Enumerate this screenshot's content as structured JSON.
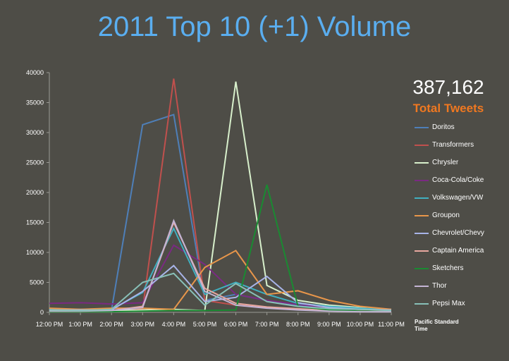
{
  "chart_data": {
    "type": "line",
    "title": "2011 Top 10 (+1) Volume",
    "x": [
      "12:00 PM",
      "1:00 PM",
      "2:00 PM",
      "3:00 PM",
      "4:00 PM",
      "5:00 PM",
      "6:00 PM",
      "7:00 PM",
      "8:00 PM",
      "9:00 PM",
      "10:00 PM",
      "11:00 PM"
    ],
    "yticks": [
      "0",
      "5000",
      "10000",
      "15000",
      "20000",
      "25000",
      "30000",
      "35000",
      "40000"
    ],
    "ylim": [
      0,
      40000
    ],
    "grid": false,
    "legend_position": "right",
    "series": [
      {
        "name": "Doritos",
        "color": "#4e7fb8",
        "values": [
          300,
          300,
          400,
          31300,
          33000,
          2000,
          3000,
          2000,
          1200,
          800,
          600,
          400
        ]
      },
      {
        "name": "Transformers",
        "color": "#c0504d",
        "values": [
          200,
          200,
          300,
          500,
          39000,
          2000,
          1200,
          800,
          500,
          300,
          200,
          150
        ]
      },
      {
        "name": "Chrysler",
        "color": "#d8f0cc",
        "values": [
          300,
          300,
          300,
          400,
          500,
          300,
          38500,
          4500,
          2000,
          1200,
          800,
          400
        ]
      },
      {
        "name": "Coca-Cola/Coke",
        "color": "#7a2a82",
        "values": [
          1500,
          1600,
          1400,
          1600,
          11200,
          8000,
          3000,
          2000,
          1300,
          800,
          600,
          400
        ]
      },
      {
        "name": "Volkswagen/VW",
        "color": "#40b0c0",
        "values": [
          500,
          500,
          500,
          3300,
          14000,
          3000,
          5000,
          3000,
          1500,
          1000,
          700,
          500
        ]
      },
      {
        "name": "Groupon",
        "color": "#e8964a",
        "values": [
          700,
          500,
          700,
          700,
          500,
          7500,
          10300,
          3000,
          3600,
          2000,
          1000,
          500
        ]
      },
      {
        "name": "Chevrolet/Chevy",
        "color": "#a8b4e8",
        "values": [
          400,
          400,
          400,
          3500,
          7800,
          1800,
          2500,
          6000,
          1600,
          800,
          500,
          400
        ]
      },
      {
        "name": "Captain America",
        "color": "#e8a8a0",
        "values": [
          200,
          200,
          300,
          1000,
          15000,
          4000,
          1500,
          900,
          600,
          300,
          200,
          100
        ]
      },
      {
        "name": "Sketchers",
        "color": "#1a8a32",
        "values": [
          100,
          100,
          100,
          200,
          300,
          300,
          400,
          21300,
          1000,
          400,
          200,
          100
        ]
      },
      {
        "name": "Thor",
        "color": "#c4b4d4",
        "values": [
          200,
          200,
          300,
          800,
          15300,
          3500,
          1200,
          700,
          400,
          200,
          100,
          100
        ]
      },
      {
        "name": "Pepsi Max",
        "color": "#88c0b8",
        "values": [
          400,
          300,
          500,
          5000,
          6500,
          1200,
          4800,
          1800,
          1000,
          600,
          500,
          300
        ]
      }
    ]
  },
  "summary": {
    "total_number": "387,162",
    "total_label": "Total Tweets",
    "timezone_note": "Pacific Standard Time"
  }
}
